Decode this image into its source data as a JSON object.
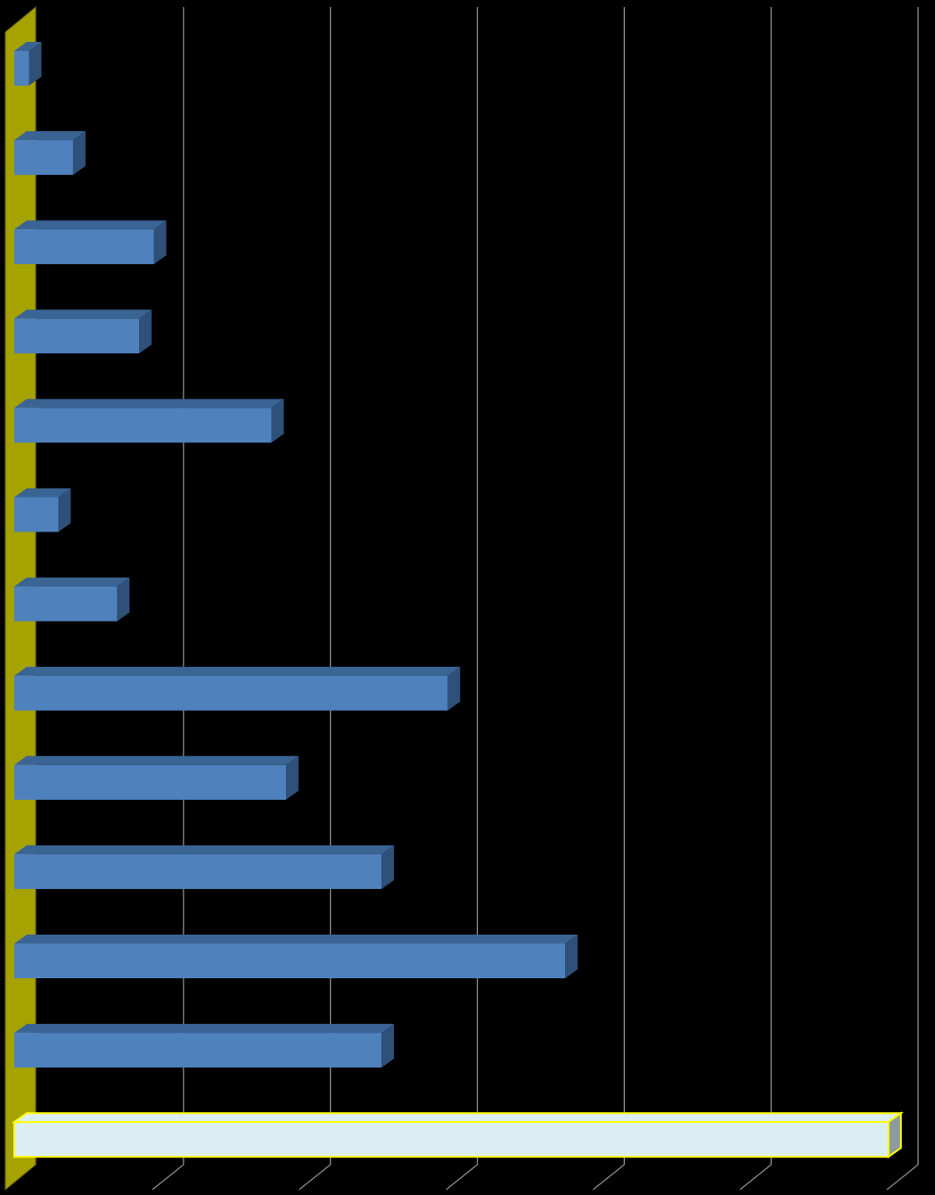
{
  "chart_data": {
    "type": "bar",
    "orientation": "horizontal",
    "three_d": true,
    "grid": true,
    "legend": "none",
    "title": "",
    "xlabel": "",
    "ylabel": "",
    "xlim": [
      0,
      6
    ],
    "categories": [
      "",
      "",
      "",
      "",
      "",
      "",
      "",
      "",
      "",
      "",
      "",
      "",
      ""
    ],
    "values": [
      0.1,
      0.4,
      0.95,
      0.85,
      1.75,
      0.3,
      0.7,
      2.95,
      1.85,
      2.5,
      3.75,
      2.5,
      5.95
    ],
    "bar_colors": [
      "#4F81BD",
      "#4F81BD",
      "#4F81BD",
      "#4F81BD",
      "#4F81BD",
      "#4F81BD",
      "#4F81BD",
      "#4F81BD",
      "#4F81BD",
      "#4F81BD",
      "#4F81BD",
      "#4F81BD",
      "#DAEEF3"
    ],
    "highlight_index": 12,
    "colors": {
      "background": "#000000",
      "bar": "#4F81BD",
      "bar_top": "#3A6493",
      "bar_side": "#2E5079",
      "highlight_bar": "#DAEEF3",
      "highlight_outline": "#FFFF00",
      "highlight_side": "#8E9B9E",
      "axis_wall": "#A6A200",
      "gridline": "#8C8C8C"
    }
  }
}
